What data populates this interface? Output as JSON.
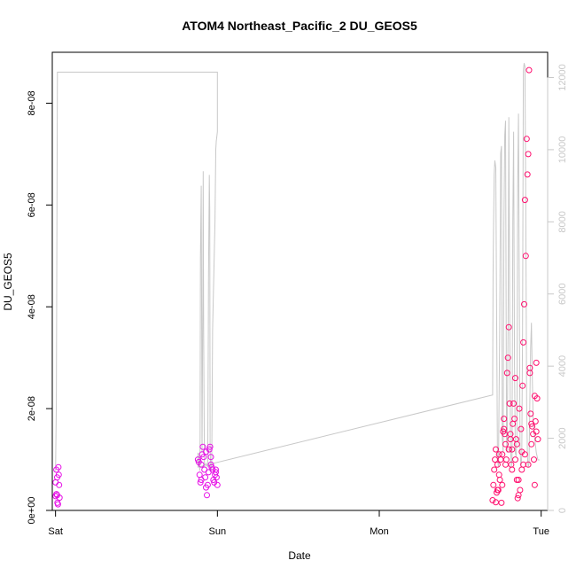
{
  "chart_data": {
    "type": "scatter",
    "title": "ATOM4 Northeast_Pacific_2 DU_GEOS5",
    "xlabel": "Date",
    "ylabel": "DU_GEOS5",
    "x_ticks": [
      "Sat",
      "Sun",
      "Mon",
      "Tue"
    ],
    "x_range_days": [
      -0.02,
      3.04
    ],
    "ylim": [
      0,
      9e-08
    ],
    "y_ticks": [
      0,
      2e-08,
      4e-08,
      6e-08,
      8e-08
    ],
    "y_tick_labels": [
      "0e+00",
      "2e-08",
      "4e-08",
      "6e-08",
      "8e-08"
    ],
    "y2_ticks": [
      0,
      2000,
      4000,
      6000,
      8000,
      10000,
      12000
    ],
    "y2_tick_labels": [
      "0",
      "2000",
      "4000",
      "6000",
      "8000",
      "10000",
      "12000"
    ],
    "y2lim": [
      0,
      12700
    ],
    "colors": {
      "points_low": "#e60fe6",
      "points_high": "#ff0f6e",
      "altitude_line": "#c8c8c8"
    },
    "series": [
      {
        "kind": "points",
        "x": [
          0.0,
          0.005,
          0.01,
          0.015,
          0.02,
          0.025,
          0.0,
          0.01,
          0.018,
          0.006,
          0.012,
          0.022,
          0.88,
          0.885,
          0.89,
          0.895,
          0.9,
          0.905,
          0.91,
          0.915,
          0.92,
          0.925,
          0.93,
          0.935,
          0.94,
          0.945,
          0.95,
          0.955,
          0.96,
          0.965,
          0.97,
          0.975,
          0.98,
          0.985,
          0.99,
          0.995,
          1.0,
          0.9,
          0.93,
          0.96,
          0.99,
          2.7,
          2.705,
          2.71,
          2.715,
          2.72,
          2.725,
          2.73,
          2.735,
          2.74,
          2.745,
          2.75,
          2.755,
          2.76,
          2.765,
          2.77,
          2.775,
          2.78,
          2.785,
          2.79,
          2.795,
          2.8,
          2.805,
          2.81,
          2.815,
          2.82,
          2.825,
          2.83,
          2.835,
          2.84,
          2.845,
          2.85,
          2.855,
          2.86,
          2.865,
          2.87,
          2.875,
          2.88,
          2.885,
          2.89,
          2.895,
          2.9,
          2.905,
          2.91,
          2.915,
          2.92,
          2.925,
          2.93,
          2.935,
          2.94,
          2.945,
          2.95,
          2.955,
          2.96,
          2.965,
          2.97,
          2.975,
          2.98,
          2.72,
          2.74,
          2.76,
          2.78,
          2.8,
          2.82,
          2.84,
          2.86,
          2.88,
          2.9,
          2.92,
          2.94,
          2.96,
          2.73,
          2.77,
          2.81,
          2.85,
          2.89,
          2.93,
          2.97
        ],
        "y": [
          5.5e-09,
          8e-09,
          3e-09,
          1.2e-09,
          7e-09,
          2.5e-09,
          2.8e-09,
          6.5e-09,
          8.5e-09,
          3.2e-09,
          1.5e-09,
          5e-09,
          1e-08,
          9.5e-09,
          7e-09,
          5.5e-09,
          6e-09,
          1.1e-08,
          1.25e-08,
          1.05e-08,
          8e-09,
          6.5e-09,
          4.5e-09,
          3e-09,
          5e-09,
          7.5e-09,
          1.2e-08,
          1.25e-08,
          9e-09,
          8.5e-09,
          8e-09,
          6e-09,
          5.5e-09,
          7e-09,
          8e-09,
          6.5e-09,
          5e-09,
          9e-09,
          1.15e-08,
          1.05e-08,
          7.5e-09,
          2e-09,
          5e-09,
          8e-09,
          1e-08,
          1.6e-09,
          3.5e-09,
          9e-09,
          4e-09,
          1.1e-08,
          6e-09,
          1e-08,
          1.5e-09,
          5e-09,
          1.55e-08,
          1.8e-08,
          1.5e-08,
          1.3e-08,
          1e-08,
          2.7e-08,
          3e-08,
          3.6e-08,
          2.1e-08,
          1.5e-08,
          9e-09,
          1.2e-08,
          1.7e-08,
          2.1e-08,
          1.8e-08,
          2.6e-08,
          1.4e-08,
          6e-09,
          2.4e-09,
          3e-09,
          2e-08,
          4e-09,
          1.6e-08,
          1.15e-08,
          2.45e-08,
          3.3e-08,
          4.05e-08,
          6.1e-08,
          5e-08,
          7.3e-08,
          6.6e-08,
          7e-08,
          8.65e-08,
          2.7e-08,
          1.9e-08,
          1.7e-08,
          1.65e-08,
          1.5e-08,
          1e-08,
          5e-09,
          1.75e-08,
          1.55e-08,
          2.2e-08,
          1.4e-08,
          1.2e-08,
          7e-09,
          1.1e-08,
          9e-09,
          1.2e-08,
          8e-09,
          1e-08,
          6e-09,
          8e-09,
          1.1e-08,
          9e-09,
          1.3e-08,
          2.25e-08,
          4e-09,
          1.6e-08,
          1.4e-08,
          1.3e-08,
          9e-09,
          2.8e-08,
          2.9e-08
        ]
      },
      {
        "kind": "line",
        "name": "",
        "x": [
          0.0,
          0.005,
          0.01,
          0.012,
          0.016,
          1.0,
          1.0,
          0.995,
          0.993,
          0.99,
          0.985,
          0.97,
          0.965,
          0.96,
          0.955,
          0.953,
          0.95,
          0.945,
          0.944,
          0.94,
          0.93,
          0.92,
          0.915,
          0.912,
          0.91,
          0.905,
          0.903,
          0.9,
          0.895,
          0.893,
          0.891,
          0.89,
          0.885,
          0.88,
          0.88,
          2.7,
          2.7,
          2.703,
          2.706,
          2.71,
          2.714,
          2.72,
          2.724,
          2.73,
          2.736,
          2.744,
          2.75,
          2.755,
          2.76,
          2.765,
          2.77,
          2.775,
          2.78,
          2.786,
          2.79,
          2.796,
          2.8,
          2.805,
          2.81,
          2.815,
          2.82,
          2.825,
          2.83,
          2.835,
          2.84,
          2.845,
          2.85,
          2.855,
          2.86,
          2.865,
          2.87,
          2.875,
          2.88,
          2.885,
          2.89,
          2.895,
          2.9,
          2.905,
          2.91,
          2.915,
          2.92,
          2.925,
          2.93,
          2.935,
          2.94,
          2.945,
          2.95,
          2.955,
          2.96,
          2.965,
          2.97,
          2.975,
          2.98,
          2.985,
          2.99
        ],
        "y": [
          1100,
          3000,
          10000,
          12150,
          12150,
          12150,
          10500,
          10300,
          10250,
          10000,
          8000,
          5000,
          1200,
          1100,
          1700,
          8300,
          9300,
          6500,
          5000,
          1200,
          1300,
          1200,
          5000,
          9400,
          6000,
          1600,
          5000,
          9000,
          7000,
          2000,
          1100,
          1200,
          1400,
          1600,
          1200,
          3200,
          3200,
          6500,
          8000,
          9300,
          9700,
          9500,
          6000,
          1400,
          1200,
          5000,
          9900,
          10100,
          2000,
          1600,
          8000,
          10400,
          10800,
          2000,
          1600,
          5200,
          10900,
          6000,
          2000,
          1200,
          1400,
          8000,
          10500,
          4000,
          1600,
          1500,
          2000,
          9000,
          11000,
          6000,
          1700,
          1200,
          1500,
          5000,
          12200,
          12400,
          12300,
          8500,
          3000,
          1500,
          1200,
          1300,
          3000,
          4500,
          5200,
          3800,
          2500,
          2200,
          2000,
          1800,
          1600,
          1500,
          1400,
          1400,
          1400
        ]
      }
    ]
  }
}
